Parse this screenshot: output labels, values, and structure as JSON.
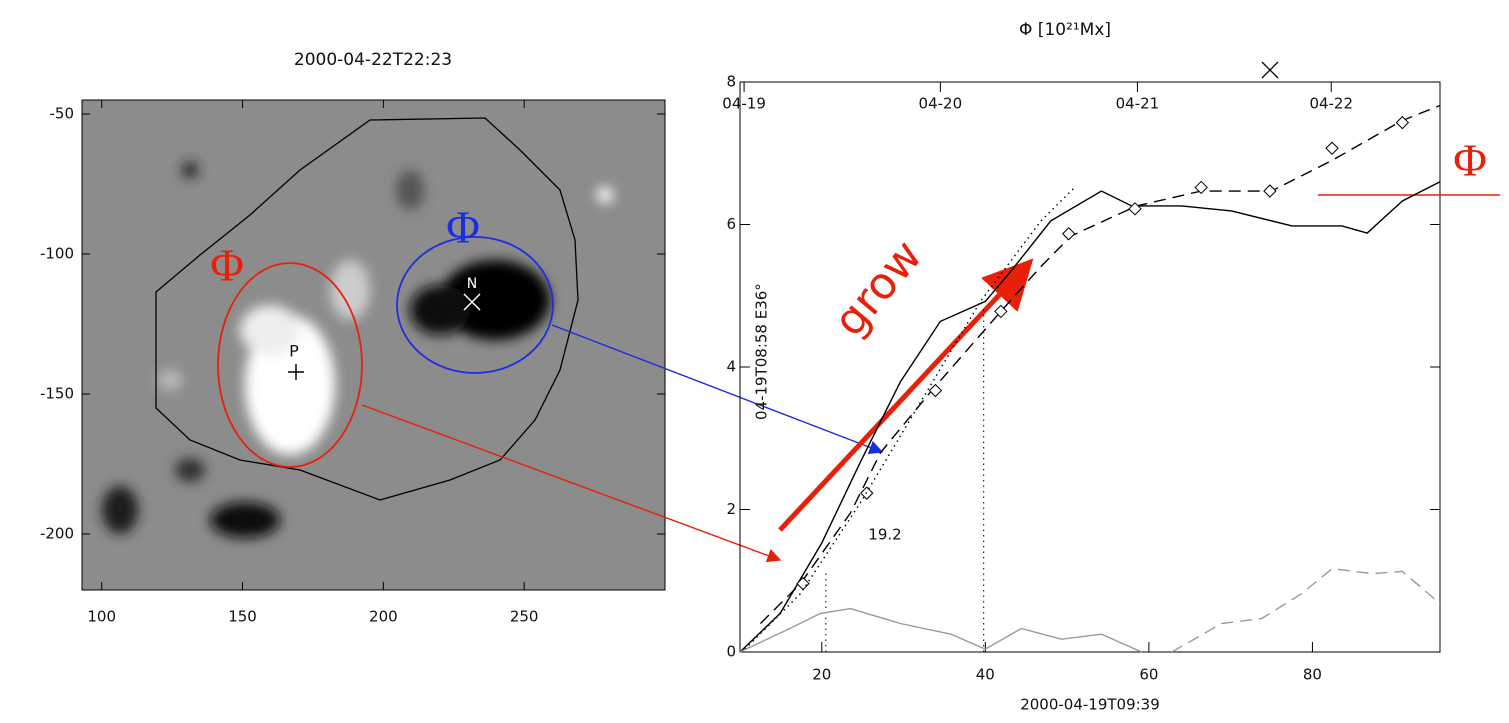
{
  "chart_data": [
    {
      "type": "image",
      "title": "2000-04-22T22:23",
      "xlim": [
        93,
        300
      ],
      "ylim": [
        -220,
        -45
      ],
      "xticks": [
        100,
        150,
        200,
        250
      ],
      "yticks": [
        -50,
        -100,
        -150,
        -200
      ],
      "annotations": [
        "Φ",
        "Φ",
        "N",
        "P"
      ]
    },
    {
      "type": "line",
      "x2label": "Φ [10²¹Mx]",
      "xlabel": "2000-04-19T09:39",
      "ylabel": "04-19T08:58  E36°",
      "xlim": [
        10,
        95.6
      ],
      "ylim": [
        0,
        8
      ],
      "xticks": [
        20,
        40,
        60,
        80
      ],
      "yticks": [
        0,
        2,
        4,
        6,
        8
      ],
      "x2ticks": [
        {
          "value": 10.5,
          "label": "04-19"
        },
        {
          "value": 34.5,
          "label": "04-20"
        },
        {
          "value": 58.6,
          "label": "04-21"
        },
        {
          "value": 82.3,
          "label": "04-22"
        }
      ],
      "vlines": [
        20.5,
        39.8
      ],
      "series": [
        {
          "style": "solid",
          "color": "#000000",
          "x": [
            10,
            14.9,
            20,
            24.7,
            29.6,
            34.5,
            40,
            43.1,
            48,
            54.2,
            57.9,
            64,
            70.1,
            77.5,
            83.6,
            86.7,
            91,
            95.6
          ],
          "values": [
            0,
            0.54,
            1.53,
            2.66,
            3.79,
            4.64,
            4.92,
            5.34,
            6.05,
            6.47,
            6.26,
            6.26,
            6.19,
            5.98,
            5.98,
            5.88,
            6.33,
            6.6
          ]
        },
        {
          "style": "dashed",
          "color": "#000000",
          "x": [
            12.5,
            17.4,
            23.5,
            27.2,
            33.3,
            41.9,
            46.8,
            50.5,
            58.5,
            66.4,
            75,
            82.4,
            91,
            95.6
          ],
          "values": [
            0.4,
            0.96,
            1.95,
            2.8,
            3.65,
            4.78,
            5.41,
            5.84,
            6.26,
            6.47,
            6.47,
            6.9,
            7.46,
            7.67
          ]
        },
        {
          "style": "diamond",
          "color": "#000000",
          "x": [
            17.7,
            25.5,
            33.9,
            41.9,
            50.2,
            58.3,
            66.4,
            74.8,
            82.4,
            91
          ],
          "values": [
            0.96,
            2.23,
            3.67,
            4.78,
            5.87,
            6.22,
            6.52,
            6.47,
            7.07,
            7.43
          ]
        },
        {
          "style": "dotted",
          "color": "#000000",
          "x": [
            10.6,
            17.4,
            24.7,
            32.1,
            39.4,
            46.8,
            51.1
          ],
          "values": [
            0.04,
            0.82,
            2.09,
            3.51,
            4.92,
            6.05,
            6.54
          ]
        },
        {
          "style": "solid",
          "color": "#999999",
          "x": [
            10,
            16.1,
            19.8,
            23.5,
            29.6,
            35.8,
            40,
            44.4,
            49.3,
            54.2,
            59.1
          ],
          "values": [
            0,
            0.33,
            0.54,
            0.61,
            0.4,
            0.25,
            0.04,
            0.33,
            0.18,
            0.25,
            0
          ]
        },
        {
          "style": "dashed",
          "color": "#999999",
          "x": [
            62.8,
            68.9,
            73.8,
            78.7,
            82.4,
            87.3,
            91,
            95.6
          ],
          "values": [
            0,
            0.4,
            0.47,
            0.82,
            1.17,
            1.1,
            1.13,
            0.68
          ]
        }
      ],
      "annotations": [
        "19.2",
        "grow",
        "Φ"
      ]
    }
  ]
}
